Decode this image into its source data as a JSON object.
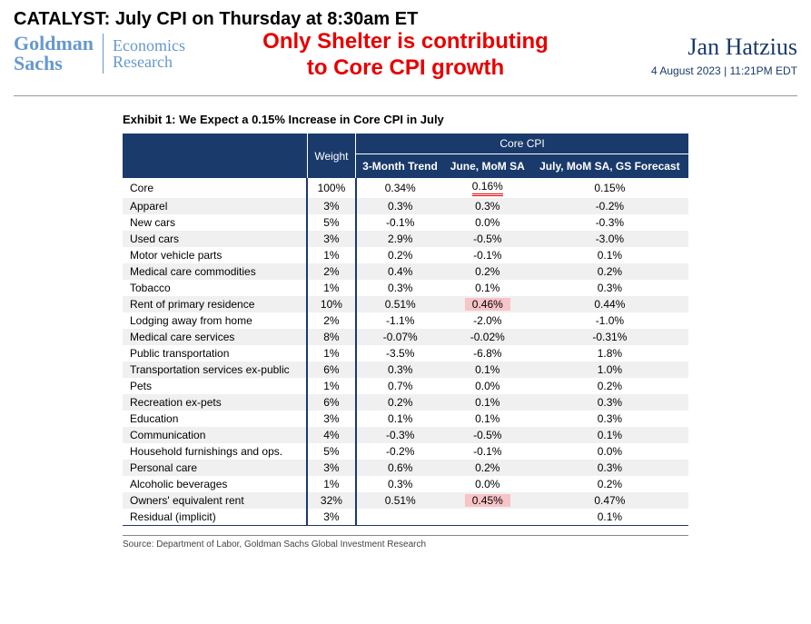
{
  "catalyst": "CATALYST: July CPI on Thursday at 8:30am ET",
  "logo": {
    "line1": "Goldman",
    "line2": "Sachs",
    "sub1": "Economics",
    "sub2": "Research"
  },
  "overlay": {
    "line1": "Only Shelter is contributing",
    "line2": "to Core CPI growth"
  },
  "author": "Jan Hatzius",
  "date": "4 August 2023 | 11:21PM EDT",
  "exhibit_title": "Exhibit 1: We Expect a 0.15% Increase in Core CPI in July",
  "columns_group": "Core CPI",
  "columns": {
    "cat": "",
    "weight": "Weight",
    "trend": "3-Month Trend",
    "june": "June, MoM SA",
    "july": "July, MoM SA, GS Forecast"
  },
  "rows": [
    {
      "cat": "Core",
      "weight": "100%",
      "trend": "0.34%",
      "june": "0.16%",
      "july": "0.15%",
      "june_style": "underline"
    },
    {
      "cat": "Apparel",
      "weight": "3%",
      "trend": "0.3%",
      "june": "0.3%",
      "july": "-0.2%"
    },
    {
      "cat": "New cars",
      "weight": "5%",
      "trend": "-0.1%",
      "june": "0.0%",
      "july": "-0.3%"
    },
    {
      "cat": "Used cars",
      "weight": "3%",
      "trend": "2.9%",
      "june": "-0.5%",
      "july": "-3.0%"
    },
    {
      "cat": "Motor vehicle parts",
      "weight": "1%",
      "trend": "0.2%",
      "june": "-0.1%",
      "july": "0.1%"
    },
    {
      "cat": "Medical care commodities",
      "weight": "2%",
      "trend": "0.4%",
      "june": "0.2%",
      "july": "0.2%"
    },
    {
      "cat": "Tobacco",
      "weight": "1%",
      "trend": "0.3%",
      "june": "0.1%",
      "july": "0.3%"
    },
    {
      "cat": "Rent of primary residence",
      "weight": "10%",
      "trend": "0.51%",
      "june": "0.46%",
      "july": "0.44%",
      "june_style": "pink"
    },
    {
      "cat": "Lodging away from home",
      "weight": "2%",
      "trend": "-1.1%",
      "june": "-2.0%",
      "july": "-1.0%"
    },
    {
      "cat": "Medical care services",
      "weight": "8%",
      "trend": "-0.07%",
      "june": "-0.02%",
      "july": "-0.31%"
    },
    {
      "cat": "Public transportation",
      "weight": "1%",
      "trend": "-3.5%",
      "june": "-6.8%",
      "july": "1.8%"
    },
    {
      "cat": "Transportation services ex-public",
      "weight": "6%",
      "trend": "0.3%",
      "june": "0.1%",
      "july": "1.0%"
    },
    {
      "cat": "Pets",
      "weight": "1%",
      "trend": "0.7%",
      "june": "0.0%",
      "july": "0.2%"
    },
    {
      "cat": "Recreation ex-pets",
      "weight": "6%",
      "trend": "0.2%",
      "june": "0.1%",
      "july": "0.3%"
    },
    {
      "cat": "Education",
      "weight": "3%",
      "trend": "0.1%",
      "june": "0.1%",
      "july": "0.3%"
    },
    {
      "cat": "Communication",
      "weight": "4%",
      "trend": "-0.3%",
      "june": "-0.5%",
      "july": "0.1%"
    },
    {
      "cat": "Household furnishings and ops.",
      "weight": "5%",
      "trend": "-0.2%",
      "june": "-0.1%",
      "july": "0.0%"
    },
    {
      "cat": "Personal care",
      "weight": "3%",
      "trend": "0.6%",
      "june": "0.2%",
      "july": "0.3%"
    },
    {
      "cat": "Alcoholic beverages",
      "weight": "1%",
      "trend": "0.3%",
      "june": "0.0%",
      "july": "0.2%"
    },
    {
      "cat": "Owners' equivalent rent",
      "weight": "32%",
      "trend": "0.51%",
      "june": "0.45%",
      "july": "0.47%",
      "june_style": "pink"
    },
    {
      "cat": "Residual (implicit)",
      "weight": "3%",
      "trend": "",
      "june": "",
      "july": "0.1%"
    }
  ],
  "source": "Source: Department of Labor, Goldman Sachs Global Investment Research",
  "colors": {
    "header_bg": "#1a3a6b",
    "logo": "#6699cc",
    "red": "#e60000",
    "pink": "#f8c4c8",
    "alt_row": "#f0f0f0"
  }
}
